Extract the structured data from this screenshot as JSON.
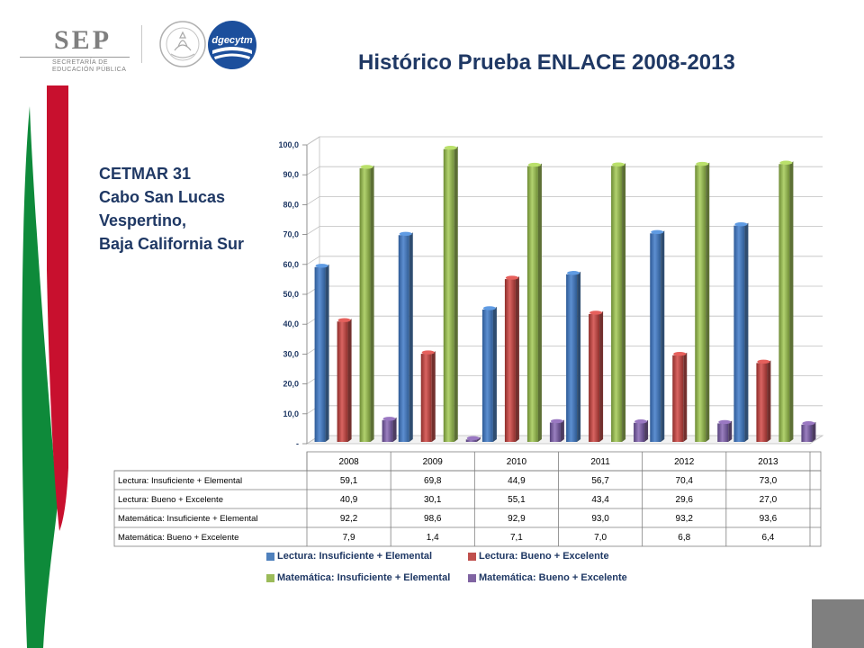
{
  "branding": {
    "sep_label": "SEP",
    "sep_sub1": "SECRETARÍA DE",
    "sep_sub2": "EDUCACIÓN PÚBLICA",
    "dgecytm_label": "dgecytm",
    "seal_icon": "mexico-coat-of-arms-seal-icon"
  },
  "colors": {
    "title": "#1f3864",
    "deco_green": "#0e8a3a",
    "deco_red": "#c8102e",
    "grey_square": "#7f7f7f"
  },
  "subtitle": [
    "CETMAR 31",
    "Cabo San Lucas",
    "Vespertino,",
    "Baja California Sur"
  ],
  "chart_data": {
    "type": "bar",
    "title": "Histórico Prueba ENLACE 2008-2013",
    "categories": [
      "2008",
      "2009",
      "2010",
      "2011",
      "2012",
      "2013"
    ],
    "series": [
      {
        "name": "Lectura: Insuficiente + Elemental",
        "color": "#4f81bd",
        "values": [
          59.1,
          69.8,
          44.9,
          56.7,
          70.4,
          73.0
        ],
        "labels": [
          "59,1",
          "69,8",
          "44,9",
          "56,7",
          "70,4",
          "73,0"
        ]
      },
      {
        "name": "Lectura: Bueno + Excelente",
        "color": "#c0504d",
        "values": [
          40.9,
          30.1,
          55.1,
          43.4,
          29.6,
          27.0
        ],
        "labels": [
          "40,9",
          "30,1",
          "55,1",
          "43,4",
          "29,6",
          "27,0"
        ]
      },
      {
        "name": "Matemática: Insuficiente + Elemental",
        "color": "#9bbb59",
        "values": [
          92.2,
          98.6,
          92.9,
          93.0,
          93.2,
          93.6
        ],
        "labels": [
          "92,2",
          "98,6",
          "92,9",
          "93,0",
          "93,2",
          "93,6"
        ]
      },
      {
        "name": "Matemática: Bueno + Excelente",
        "color": "#8064a2",
        "values": [
          7.9,
          1.4,
          7.1,
          7.0,
          6.8,
          6.4
        ],
        "labels": [
          "7,9",
          "1,4",
          "7,1",
          "7,0",
          "6,8",
          "6,4"
        ]
      }
    ],
    "ylim": [
      0,
      100
    ],
    "yticks": [
      0,
      10,
      20,
      30,
      40,
      50,
      60,
      70,
      80,
      90,
      100
    ],
    "ytick_labels": [
      "-",
      "10,0",
      "20,0",
      "30,0",
      "40,0",
      "50,0",
      "60,0",
      "70,0",
      "80,0",
      "90,0",
      "100,0"
    ],
    "grid": true,
    "data_table": true,
    "legend_position": "bottom"
  }
}
